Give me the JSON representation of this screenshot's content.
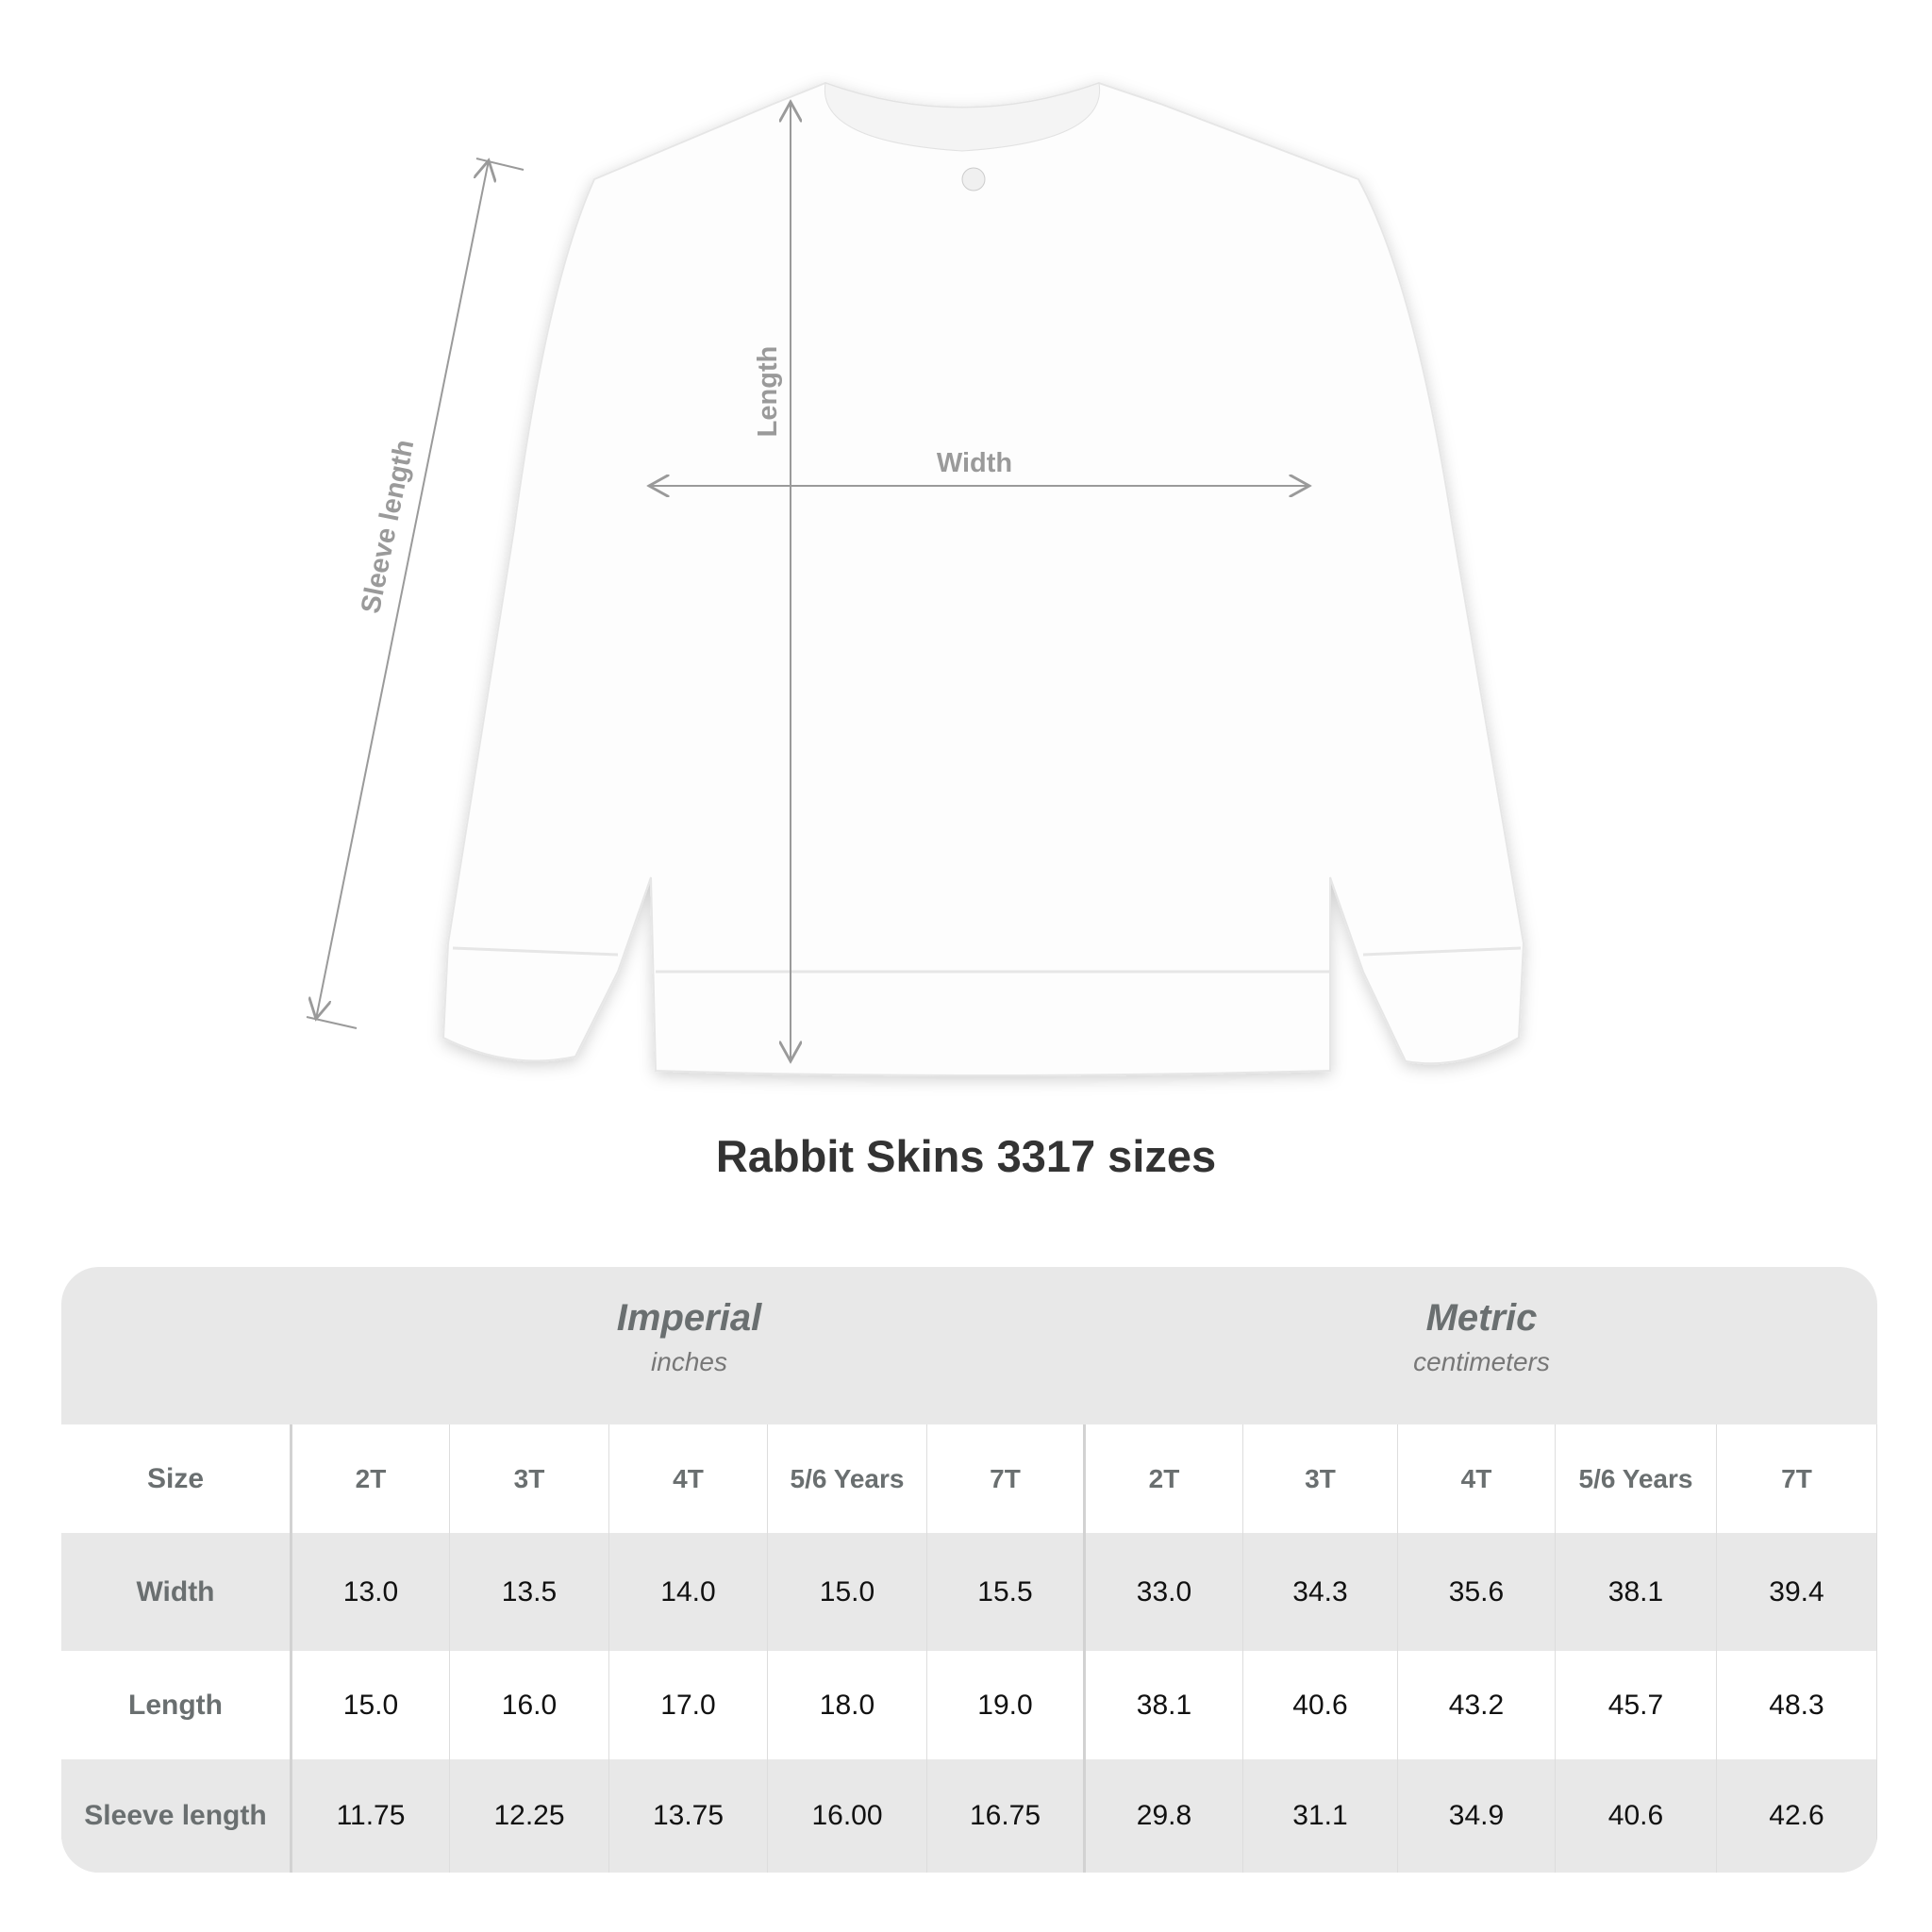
{
  "diagram": {
    "labels": {
      "length": "Length",
      "width": "Width",
      "sleeve": "Sleeve length"
    },
    "garment_color": "#ffffff",
    "line_color": "#9a9a9a"
  },
  "title": "Rabbit Skins 3317 sizes",
  "table": {
    "imperial": {
      "label": "Imperial",
      "unit": "inches"
    },
    "metric": {
      "label": "Metric",
      "unit": "centimeters"
    },
    "size_label": "Size",
    "sizes": [
      "2T",
      "3T",
      "4T",
      "5/6 Years",
      "7T"
    ],
    "rows": [
      {
        "label": "Width",
        "imperial": [
          "13.0",
          "13.5",
          "14.0",
          "15.0",
          "15.5"
        ],
        "metric": [
          "33.0",
          "34.3",
          "35.6",
          "38.1",
          "39.4"
        ]
      },
      {
        "label": "Length",
        "imperial": [
          "15.0",
          "16.0",
          "17.0",
          "18.0",
          "19.0"
        ],
        "metric": [
          "38.1",
          "40.6",
          "43.2",
          "45.7",
          "48.3"
        ]
      },
      {
        "label": "Sleeve length",
        "imperial": [
          "11.75",
          "12.25",
          "13.75",
          "16.00",
          "16.75"
        ],
        "metric": [
          "29.8",
          "31.1",
          "34.9",
          "40.6",
          "42.6"
        ]
      }
    ]
  }
}
